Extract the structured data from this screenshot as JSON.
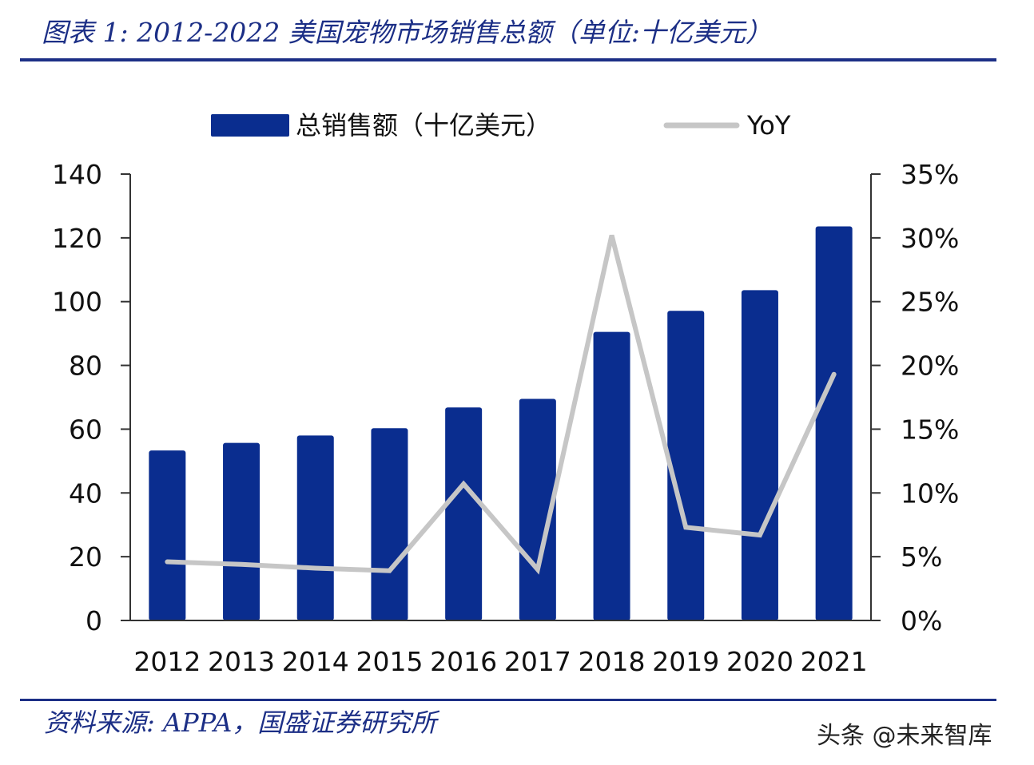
{
  "title": "图表 1:  2012-2022 美国宠物市场销售总额（单位:十亿美元）",
  "source": "资料来源:  APPA，国盛证券研究所",
  "watermark": "头条 @未来智库",
  "colors": {
    "bar": "#0a2d8f",
    "line": "#c6c6c6",
    "axis": "#333333",
    "accent": "#1c2f86"
  },
  "chart_data": {
    "type": "bar",
    "categories": [
      "2012",
      "2013",
      "2014",
      "2015",
      "2016",
      "2017",
      "2018",
      "2019",
      "2020",
      "2021"
    ],
    "series": [
      {
        "name": "总销售额（十亿美元）",
        "type": "bar",
        "axis": "left",
        "values": [
          53.3,
          55.7,
          58.0,
          60.3,
          66.8,
          69.5,
          90.5,
          97.1,
          103.6,
          123.6
        ]
      },
      {
        "name": "YoY",
        "type": "line",
        "axis": "right",
        "values": [
          4.6,
          4.4,
          4.1,
          3.9,
          10.7,
          4.0,
          30.2,
          7.3,
          6.7,
          19.3
        ]
      }
    ],
    "y_left": {
      "min": 0,
      "max": 140,
      "ticks": [
        "0",
        "20",
        "40",
        "60",
        "80",
        "100",
        "120",
        "140"
      ]
    },
    "y_right": {
      "min": 0,
      "max": 35,
      "ticks": [
        "0%",
        "5%",
        "10%",
        "15%",
        "20%",
        "25%",
        "30%",
        "35%"
      ]
    },
    "legend_position": "top",
    "grid": false
  }
}
